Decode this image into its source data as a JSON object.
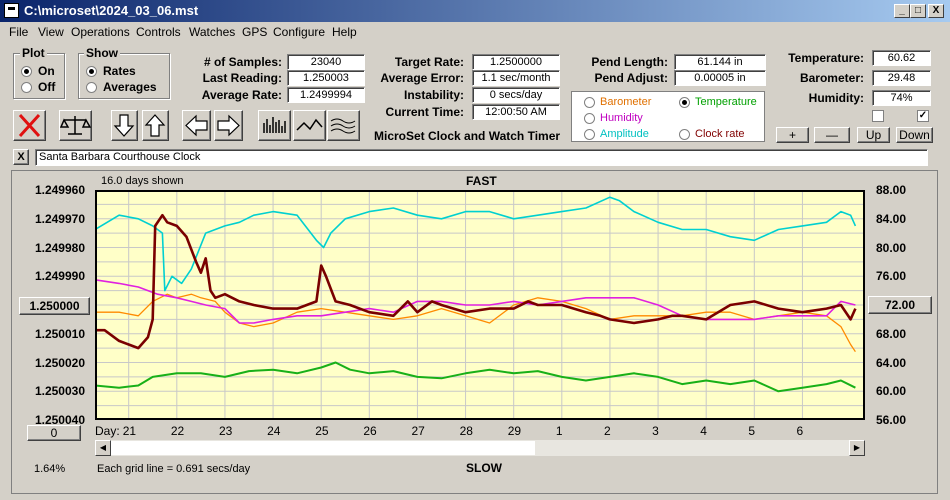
{
  "window": {
    "title": "C:\\microset\\2024_03_06.mst",
    "min": "_",
    "max": "□",
    "close": "X"
  },
  "menu": [
    "File",
    "View",
    "Operations",
    "Controls",
    "Watches",
    "GPS",
    "Configure",
    "Help"
  ],
  "plot": {
    "label": "Plot",
    "on": "On",
    "off": "Off",
    "selected": "On"
  },
  "show": {
    "label": "Show",
    "rates": "Rates",
    "averages": "Averages",
    "selected": "Rates"
  },
  "stats": {
    "samples_label": "# of Samples:",
    "samples": "23040",
    "last_label": "Last Reading:",
    "last": "1.250003",
    "avg_label": "Average Rate:",
    "avg": "1.2499994",
    "target_label": "Target Rate:",
    "target": "1.2500000",
    "error_label": "Average Error:",
    "error": "1.1 sec/month",
    "instab_label": "Instability:",
    "instab": "0 secs/day",
    "time_label": "Current Time:",
    "time": "12:00:50 AM",
    "pend_len_label": "Pend Length:",
    "pend_len": "61.144 in",
    "pend_adj_label": "Pend Adjust:",
    "pend_adj": "0.00005 in",
    "temp_label": "Temperature:",
    "temp": "60.62",
    "baro_label": "Barometer:",
    "baro": "29.48",
    "hum_label": "Humidity:",
    "hum": "74%"
  },
  "app_caption": "MicroSet Clock and Watch Timer",
  "legend": {
    "barometer": "Barometer",
    "temperature": "Temperature",
    "humidity": "Humidity",
    "amplitude": "Amplitude",
    "clock_rate": "Clock rate",
    "selected": "Temperature",
    "colors": {
      "barometer": "#e07000",
      "temperature": "#00a000",
      "humidity": "#c000c0",
      "amplitude": "#00c0c0",
      "clock_rate": "#800000"
    }
  },
  "adjust_buttons": {
    "plus": "+",
    "minus": "—",
    "up": "Up",
    "down": "Down"
  },
  "watch": {
    "close": "X",
    "name": "Santa Barbara Courthouse Clock"
  },
  "chart": {
    "days_shown": "16.0 days shown",
    "fast": "FAST",
    "slow": "SLOW",
    "left_button": "1.250000",
    "right_button": "72.00",
    "zero_button": "0",
    "day_label": "Day:",
    "percent": "1.64%",
    "grid_note": "Each grid line = 0.691 secs/day"
  },
  "chart_data": {
    "type": "line",
    "y_left_ticks": [
      "1.249960",
      "1.249970",
      "1.249980",
      "1.249990",
      "1.250000",
      "1.250010",
      "1.250020",
      "1.250030",
      "1.250040"
    ],
    "y_right_ticks": [
      "88.00",
      "84.00",
      "80.00",
      "76.00",
      "72.00",
      "68.00",
      "64.00",
      "60.00",
      "56.00"
    ],
    "x_ticks": [
      "21",
      "22",
      "23",
      "24",
      "25",
      "26",
      "27",
      "28",
      "29",
      "1",
      "2",
      "3",
      "4",
      "5",
      "6"
    ],
    "y_left_range": [
      1.24996,
      1.25004
    ],
    "y_right_range": [
      56,
      88
    ],
    "x_range": [
      20.3,
      36.3
    ],
    "series": [
      {
        "key": "amplitude",
        "color": "#00d0d0",
        "width": 1.6,
        "x": [
          20.3,
          20.8,
          21.2,
          21.5,
          21.7,
          21.75,
          21.9,
          22.1,
          22.3,
          22.6,
          22.8,
          23.0,
          23.3,
          23.6,
          24.0,
          24.5,
          24.9,
          25.05,
          25.2,
          25.5,
          26.0,
          26.5,
          27.0,
          27.5,
          28.0,
          28.5,
          29.0,
          29.5,
          30.0,
          30.5,
          31.0,
          31.2,
          31.5,
          32.0,
          32.5,
          33.0,
          33.5,
          34.0,
          34.5,
          35.0,
          35.5,
          35.8,
          36.0,
          36.1
        ],
        "y": [
          82.5,
          84.5,
          84.0,
          83.0,
          82.0,
          74.0,
          76.0,
          75.0,
          77.0,
          82.0,
          82.5,
          83.0,
          83.5,
          84.5,
          85.0,
          84.5,
          81.0,
          80.0,
          82.0,
          84.0,
          85.0,
          85.5,
          84.5,
          84.0,
          85.0,
          85.0,
          84.0,
          84.5,
          85.0,
          85.5,
          87.0,
          86.5,
          85.0,
          83.5,
          82.5,
          82.5,
          81.5,
          81.0,
          82.5,
          83.0,
          83.5,
          85.0,
          84.5,
          83.0
        ]
      },
      {
        "key": "barometer",
        "color": "#ff8a00",
        "width": 1.3,
        "x": [
          20.3,
          20.8,
          21.2,
          21.5,
          21.8,
          22.0,
          22.3,
          22.5,
          22.8,
          23.0,
          23.3,
          23.6,
          24.0,
          24.5,
          25.0,
          25.5,
          26.0,
          26.5,
          27.0,
          27.5,
          28.0,
          28.5,
          29.0,
          29.5,
          30.0,
          30.5,
          31.0,
          31.5,
          32.0,
          32.5,
          33.0,
          33.5,
          34.0,
          34.5,
          35.0,
          35.5,
          35.8,
          36.0,
          36.1
        ],
        "y": [
          71.0,
          71.0,
          70.5,
          72.5,
          73.5,
          73.0,
          73.5,
          73.0,
          72.5,
          71.0,
          69.5,
          69.0,
          69.5,
          71.0,
          71.5,
          71.0,
          70.5,
          70.0,
          70.5,
          71.5,
          70.5,
          69.5,
          72.0,
          73.0,
          72.5,
          71.5,
          70.0,
          70.5,
          70.5,
          70.5,
          71.0,
          71.0,
          70.0,
          70.5,
          71.0,
          70.5,
          69.0,
          66.5,
          65.5
        ]
      },
      {
        "key": "humidity",
        "color": "#e020e0",
        "width": 1.6,
        "x": [
          20.3,
          20.8,
          21.2,
          21.6,
          22.0,
          22.3,
          22.6,
          23.0,
          23.3,
          23.6,
          24.0,
          24.5,
          25.0,
          25.5,
          26.0,
          26.5,
          27.0,
          27.5,
          28.0,
          28.5,
          29.0,
          29.5,
          30.0,
          30.5,
          31.0,
          31.5,
          32.0,
          32.5,
          33.0,
          33.5,
          34.0,
          34.5,
          35.0,
          35.5,
          35.8,
          36.1
        ],
        "y": [
          75.5,
          75.0,
          74.5,
          73.5,
          73.0,
          72.5,
          72.0,
          71.5,
          69.5,
          69.5,
          70.0,
          70.5,
          70.5,
          71.0,
          71.5,
          71.0,
          72.5,
          72.5,
          72.0,
          72.0,
          72.5,
          72.0,
          72.5,
          73.0,
          73.0,
          73.0,
          72.0,
          70.5,
          70.0,
          70.0,
          70.0,
          70.5,
          70.5,
          70.5,
          72.5,
          72.0
        ]
      },
      {
        "key": "clock_rate",
        "color": "#7a0000",
        "width": 2.6,
        "x": [
          20.3,
          20.5,
          20.8,
          21.0,
          21.2,
          21.4,
          21.5,
          21.55,
          21.7,
          21.8,
          22.0,
          22.2,
          22.4,
          22.5,
          22.6,
          22.7,
          22.8,
          23.0,
          23.3,
          23.6,
          24.0,
          24.5,
          24.9,
          25.0,
          25.1,
          25.3,
          25.6,
          26.0,
          26.5,
          26.8,
          27.0,
          27.3,
          27.5,
          28.0,
          28.5,
          29.0,
          29.3,
          29.5,
          30.0,
          30.5,
          30.8,
          31.0,
          31.5,
          32.0,
          32.3,
          32.5,
          33.0,
          33.5,
          34.0,
          34.5,
          35.0,
          35.5,
          35.8,
          36.0,
          36.1
        ],
        "y": [
          68.5,
          68.5,
          67.0,
          66.5,
          66.0,
          67.5,
          70.0,
          83.0,
          84.5,
          83.5,
          83.0,
          81.5,
          78.0,
          76.5,
          78.5,
          74.0,
          73.0,
          73.5,
          72.5,
          72.0,
          71.5,
          71.5,
          72.5,
          77.5,
          76.0,
          72.5,
          72.0,
          71.0,
          70.5,
          72.5,
          71.0,
          72.5,
          72.0,
          71.0,
          71.5,
          71.5,
          72.5,
          72.0,
          72.0,
          71.0,
          70.5,
          70.0,
          69.5,
          70.0,
          70.5,
          70.5,
          70.0,
          72.0,
          72.5,
          71.5,
          71.0,
          71.5,
          72.0,
          70.0,
          71.5
        ]
      },
      {
        "key": "temperature",
        "color": "#18b018",
        "width": 2.0,
        "x": [
          20.3,
          20.8,
          21.2,
          21.5,
          22.0,
          22.5,
          23.0,
          23.5,
          24.0,
          24.5,
          25.0,
          25.3,
          25.6,
          26.0,
          26.5,
          27.0,
          27.5,
          28.0,
          28.5,
          29.0,
          29.5,
          30.0,
          30.5,
          31.0,
          31.5,
          32.0,
          32.5,
          33.0,
          33.5,
          34.0,
          34.5,
          35.0,
          35.5,
          35.8,
          36.1
        ],
        "y": [
          60.8,
          60.5,
          60.8,
          62.0,
          62.5,
          62.5,
          62.0,
          62.8,
          63.0,
          62.5,
          63.3,
          64.0,
          63.0,
          62.5,
          62.8,
          62.0,
          61.8,
          62.5,
          63.0,
          62.5,
          62.8,
          62.0,
          61.5,
          62.0,
          62.5,
          62.0,
          61.0,
          61.5,
          61.0,
          61.5,
          60.0,
          60.5,
          61.0,
          61.5,
          60.5
        ]
      }
    ]
  }
}
